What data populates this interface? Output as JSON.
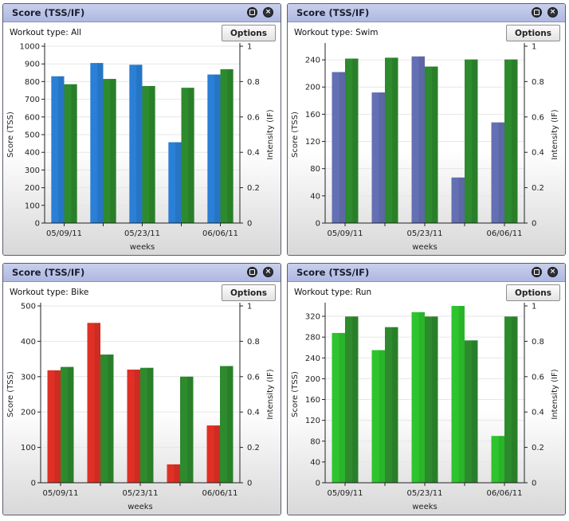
{
  "panels": [
    {
      "title": "Score (TSS/IF)",
      "workout_type": "Workout type: All",
      "options_label": "Options",
      "min_icon": "minimize-icon",
      "close_icon": "close-icon"
    },
    {
      "title": "Score (TSS/IF)",
      "workout_type": "Workout type: Swim",
      "options_label": "Options",
      "min_icon": "minimize-icon",
      "close_icon": "close-icon"
    },
    {
      "title": "Score (TSS/IF)",
      "workout_type": "Workout type: Bike",
      "options_label": "Options",
      "min_icon": "minimize-icon",
      "close_icon": "close-icon"
    },
    {
      "title": "Score (TSS/IF)",
      "workout_type": "Workout type: Run",
      "options_label": "Options",
      "min_icon": "minimize-icon",
      "close_icon": "close-icon"
    }
  ],
  "chart_data": [
    {
      "type": "bar",
      "categories": [
        "05/09/11",
        "",
        "05/23/11",
        "",
        "06/06/11"
      ],
      "xlabel": "weeks",
      "ylabel": "Score (TSS)",
      "y2label": "Intensity (IF)",
      "ylim": [
        0,
        1000
      ],
      "yticks": [
        0,
        100,
        200,
        300,
        400,
        500,
        600,
        700,
        800,
        900,
        1000
      ],
      "y2lim": [
        0,
        1
      ],
      "y2ticks": [
        0,
        0.2,
        0.4,
        0.6,
        0.8,
        1
      ],
      "series": [
        {
          "axis": "left",
          "color": "#2a7fd6",
          "values": [
            830,
            905,
            895,
            457,
            840
          ]
        },
        {
          "axis": "right",
          "color": "#2d8a2d",
          "values": [
            0.785,
            0.815,
            0.775,
            0.765,
            0.87
          ]
        }
      ]
    },
    {
      "type": "bar",
      "categories": [
        "05/09/11",
        "",
        "05/23/11",
        "",
        "06/06/11"
      ],
      "xlabel": "weeks",
      "ylabel": "Score (TSS)",
      "y2label": "Intensity (IF)",
      "ylim": [
        0,
        260
      ],
      "yticks": [
        0,
        40,
        80,
        120,
        160,
        200,
        240
      ],
      "y2lim": [
        0,
        1
      ],
      "y2ticks": [
        0,
        0.2,
        0.4,
        0.6,
        0.8,
        1
      ],
      "series": [
        {
          "axis": "left",
          "color": "#6470b4",
          "values": [
            222,
            192,
            245,
            67,
            148
          ]
        },
        {
          "axis": "right",
          "color": "#2d8a2d",
          "values": [
            0.93,
            0.935,
            0.885,
            0.925,
            0.925
          ]
        }
      ]
    },
    {
      "type": "bar",
      "categories": [
        "05/09/11",
        "",
        "05/23/11",
        "",
        "06/06/11"
      ],
      "xlabel": "weeks",
      "ylabel": "Score (TSS)",
      "y2label": "Intensity (IF)",
      "ylim": [
        0,
        500
      ],
      "yticks": [
        0,
        100,
        200,
        300,
        400,
        500
      ],
      "y2lim": [
        0,
        1
      ],
      "y2ticks": [
        0,
        0.2,
        0.4,
        0.6,
        0.8,
        1
      ],
      "series": [
        {
          "axis": "left",
          "color": "#e03025",
          "values": [
            318,
            452,
            320,
            52,
            162
          ]
        },
        {
          "axis": "right",
          "color": "#2d8a2d",
          "values": [
            0.655,
            0.725,
            0.65,
            0.6,
            0.66
          ]
        }
      ]
    },
    {
      "type": "bar",
      "categories": [
        "05/09/11",
        "",
        "05/23/11",
        "",
        "06/06/11"
      ],
      "xlabel": "weeks",
      "ylabel": "Score (TSS)",
      "y2label": "Intensity (IF)",
      "ylim": [
        0,
        340
      ],
      "yticks": [
        0,
        40,
        80,
        120,
        160,
        200,
        240,
        280,
        320
      ],
      "y2lim": [
        0,
        1
      ],
      "y2ticks": [
        0,
        0.2,
        0.4,
        0.6,
        0.8,
        1
      ],
      "series": [
        {
          "axis": "left",
          "color": "#2ec42e",
          "values": [
            288,
            255,
            328,
            340,
            90
          ]
        },
        {
          "axis": "right",
          "color": "#2d8a2d",
          "values": [
            0.94,
            0.88,
            0.94,
            0.805,
            0.94
          ]
        }
      ]
    }
  ]
}
